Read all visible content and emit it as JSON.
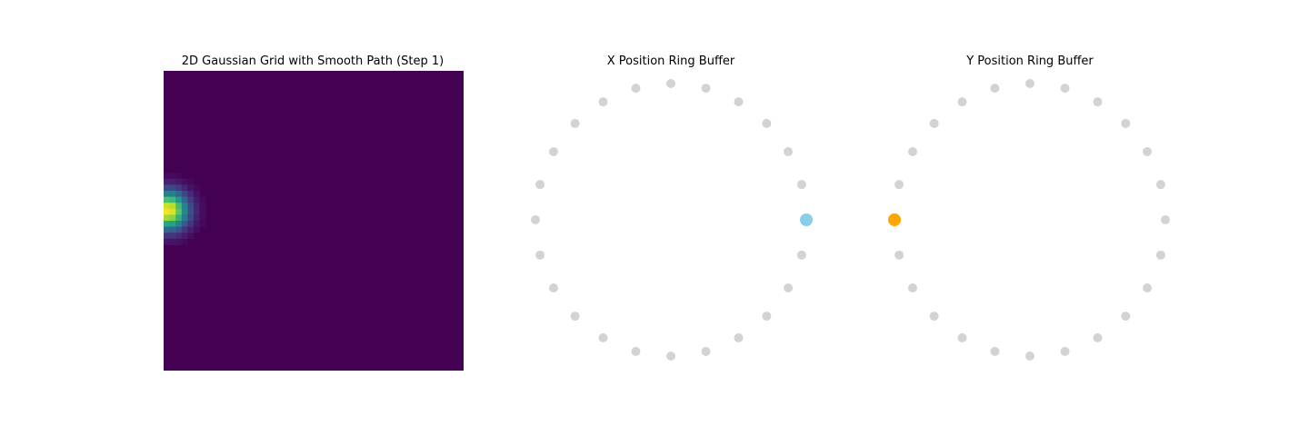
{
  "chart_data": [
    {
      "type": "heatmap",
      "title": "2D Gaussian Grid with Smooth Path (Step 1)",
      "grid_size": 50,
      "colormap": "viridis",
      "gaussian_center": {
        "col": 0.3,
        "row": 22.8
      },
      "gaussian_sigma": 2.2,
      "axes_visible": false
    },
    {
      "type": "scatter",
      "title": "X Position Ring Buffer",
      "ring_slots": 24,
      "active_slot": 0,
      "inactive_color": "#d3d3d3",
      "active_color": "#87ceeb",
      "axes_visible": false
    },
    {
      "type": "scatter",
      "title": "Y Position Ring Buffer",
      "ring_slots": 24,
      "active_slot": 12,
      "inactive_color": "#d3d3d3",
      "active_color": "#ffa500",
      "axes_visible": false
    }
  ]
}
